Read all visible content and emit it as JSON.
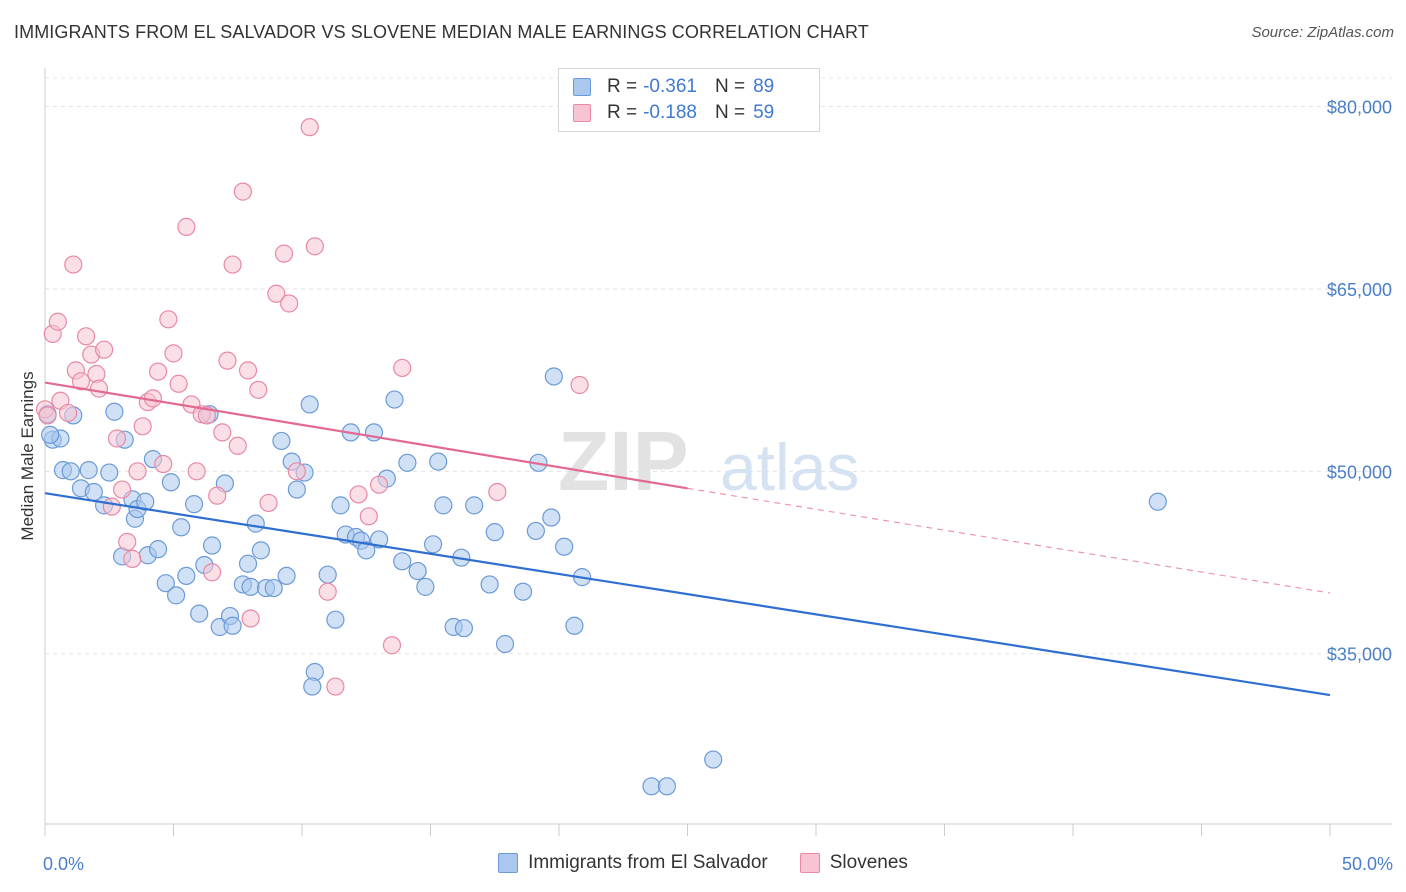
{
  "header": {
    "title": "IMMIGRANTS FROM EL SALVADOR VS SLOVENE MEDIAN MALE EARNINGS CORRELATION CHART",
    "source": "Source: ZipAtlas.com"
  },
  "watermark": {
    "zip": "ZIP",
    "atlas": "atlas"
  },
  "legend": {
    "rows": [
      {
        "r_label": "R =",
        "r_value": "-0.361",
        "n_label": "N =",
        "n_value": "89",
        "color": "#aac8ee",
        "border": "#6c9ad6"
      },
      {
        "r_label": "R =",
        "r_value": "-0.188",
        "n_label": "N =",
        "n_value": "59",
        "color": "#f8c4d2",
        "border": "#e889a6"
      }
    ]
  },
  "bottom_legend": {
    "items": [
      {
        "label": "Immigrants from El Salvador",
        "color": "#aac8ee",
        "border": "#6c9ad6"
      },
      {
        "label": "Slovenes",
        "color": "#f8c4d2",
        "border": "#e889a6"
      }
    ]
  },
  "chart_data": {
    "type": "scatter",
    "title": "IMMIGRANTS FROM EL SALVADOR VS SLOVENE MEDIAN MALE EARNINGS CORRELATION CHART",
    "xlabel": "",
    "ylabel": "Median Male Earnings",
    "xlim": [
      0,
      50
    ],
    "ylim": [
      21000,
      83000
    ],
    "x_tick_labels": [
      "0.0%",
      "50.0%"
    ],
    "y_ticks": [
      35000,
      50000,
      65000,
      80000
    ],
    "y_tick_labels": [
      "$35,000",
      "$50,000",
      "$65,000",
      "$80,000"
    ],
    "grid": true,
    "colors": {
      "blue": "#6c9ad6",
      "blue_fill": "#aac8ee",
      "pink": "#e889a6",
      "pink_fill": "#f8c4d2",
      "blue_line": "#2f6fd0",
      "pink_line": "#e26a90"
    },
    "series": [
      {
        "name": "Immigrants from El Salvador",
        "color": "#6c9ad6",
        "trend": {
          "x": [
            0,
            50
          ],
          "y": [
            48200,
            31600
          ],
          "style": "solid"
        },
        "points": [
          [
            0.1,
            54700
          ],
          [
            0.3,
            52600
          ],
          [
            0.6,
            52700
          ],
          [
            0.7,
            50100
          ],
          [
            1.1,
            54600
          ],
          [
            1.0,
            50000
          ],
          [
            1.4,
            48600
          ],
          [
            1.7,
            50100
          ],
          [
            1.9,
            48300
          ],
          [
            2.5,
            49900
          ],
          [
            2.3,
            47200
          ],
          [
            2.7,
            54900
          ],
          [
            3.1,
            52600
          ],
          [
            3.5,
            46100
          ],
          [
            3.4,
            47700
          ],
          [
            3.6,
            46900
          ],
          [
            3.9,
            47500
          ],
          [
            3.0,
            43000
          ],
          [
            4.0,
            43100
          ],
          [
            4.2,
            51000
          ],
          [
            4.4,
            43600
          ],
          [
            4.7,
            40800
          ],
          [
            4.9,
            49100
          ],
          [
            5.1,
            39800
          ],
          [
            5.3,
            45400
          ],
          [
            5.5,
            41400
          ],
          [
            5.8,
            47300
          ],
          [
            6.0,
            38300
          ],
          [
            6.2,
            42300
          ],
          [
            6.4,
            54700
          ],
          [
            6.5,
            43900
          ],
          [
            6.8,
            37200
          ],
          [
            7.0,
            49000
          ],
          [
            7.2,
            38100
          ],
          [
            7.3,
            37300
          ],
          [
            7.7,
            40700
          ],
          [
            7.9,
            42400
          ],
          [
            8.0,
            40500
          ],
          [
            8.2,
            45700
          ],
          [
            8.4,
            43500
          ],
          [
            8.6,
            40400
          ],
          [
            8.9,
            40400
          ],
          [
            9.2,
            52500
          ],
          [
            9.4,
            41400
          ],
          [
            9.6,
            50800
          ],
          [
            9.8,
            48500
          ],
          [
            10.1,
            49900
          ],
          [
            10.3,
            55500
          ],
          [
            10.5,
            33500
          ],
          [
            10.4,
            32300
          ],
          [
            11.0,
            41500
          ],
          [
            11.3,
            37800
          ],
          [
            11.5,
            47200
          ],
          [
            11.7,
            44800
          ],
          [
            11.9,
            53200
          ],
          [
            12.1,
            44600
          ],
          [
            12.3,
            44300
          ],
          [
            12.5,
            43500
          ],
          [
            12.8,
            53200
          ],
          [
            13.0,
            44400
          ],
          [
            13.3,
            49400
          ],
          [
            13.6,
            55900
          ],
          [
            13.9,
            42600
          ],
          [
            14.1,
            50700
          ],
          [
            14.5,
            41800
          ],
          [
            14.8,
            40500
          ],
          [
            15.1,
            44000
          ],
          [
            15.3,
            50800
          ],
          [
            15.5,
            47200
          ],
          [
            15.9,
            37200
          ],
          [
            16.2,
            42900
          ],
          [
            16.3,
            37100
          ],
          [
            16.7,
            47200
          ],
          [
            17.3,
            40700
          ],
          [
            17.5,
            45000
          ],
          [
            17.9,
            35800
          ],
          [
            18.6,
            40100
          ],
          [
            19.1,
            45100
          ],
          [
            19.2,
            50700
          ],
          [
            19.7,
            46200
          ],
          [
            19.8,
            57800
          ],
          [
            20.2,
            43800
          ],
          [
            20.6,
            37300
          ],
          [
            20.9,
            41300
          ],
          [
            23.6,
            24100
          ],
          [
            24.2,
            24100
          ],
          [
            26.0,
            26300
          ],
          [
            43.3,
            47500
          ],
          [
            0.2,
            53000
          ]
        ]
      },
      {
        "name": "Slovenes",
        "color": "#e889a6",
        "trend": {
          "x": [
            0,
            25
          ],
          "y": [
            57300,
            48600
          ],
          "style": "solid"
        },
        "trend_extension": {
          "x": [
            25,
            50
          ],
          "y": [
            48600,
            40000
          ],
          "style": "dashed"
        },
        "points": [
          [
            0.0,
            55100
          ],
          [
            0.1,
            54600
          ],
          [
            0.3,
            61300
          ],
          [
            0.5,
            62300
          ],
          [
            0.6,
            55800
          ],
          [
            0.9,
            54800
          ],
          [
            1.1,
            67000
          ],
          [
            1.2,
            58300
          ],
          [
            1.4,
            57400
          ],
          [
            1.6,
            61100
          ],
          [
            1.8,
            59600
          ],
          [
            2.0,
            58000
          ],
          [
            2.1,
            56800
          ],
          [
            2.3,
            60000
          ],
          [
            2.6,
            47100
          ],
          [
            2.8,
            52700
          ],
          [
            3.0,
            48500
          ],
          [
            3.2,
            44200
          ],
          [
            3.4,
            42800
          ],
          [
            3.6,
            50000
          ],
          [
            3.8,
            53700
          ],
          [
            4.0,
            55700
          ],
          [
            4.2,
            56000
          ],
          [
            4.4,
            58200
          ],
          [
            4.6,
            50600
          ],
          [
            4.8,
            62500
          ],
          [
            5.0,
            59700
          ],
          [
            5.2,
            57200
          ],
          [
            5.5,
            70100
          ],
          [
            5.7,
            55500
          ],
          [
            5.9,
            50000
          ],
          [
            6.1,
            54700
          ],
          [
            6.3,
            54600
          ],
          [
            6.5,
            41700
          ],
          [
            6.7,
            48000
          ],
          [
            6.9,
            53200
          ],
          [
            7.1,
            59100
          ],
          [
            7.3,
            67000
          ],
          [
            7.5,
            52100
          ],
          [
            7.7,
            73000
          ],
          [
            7.9,
            58300
          ],
          [
            8.0,
            37900
          ],
          [
            8.3,
            56700
          ],
          [
            8.7,
            47400
          ],
          [
            9.0,
            64600
          ],
          [
            9.3,
            67900
          ],
          [
            9.5,
            63800
          ],
          [
            9.8,
            50000
          ],
          [
            10.3,
            78300
          ],
          [
            10.5,
            68500
          ],
          [
            11.0,
            40100
          ],
          [
            11.3,
            32300
          ],
          [
            12.2,
            48100
          ],
          [
            12.6,
            46300
          ],
          [
            13.0,
            48900
          ],
          [
            13.5,
            35700
          ],
          [
            13.9,
            58500
          ],
          [
            17.6,
            48300
          ],
          [
            20.8,
            57100
          ]
        ]
      }
    ]
  }
}
